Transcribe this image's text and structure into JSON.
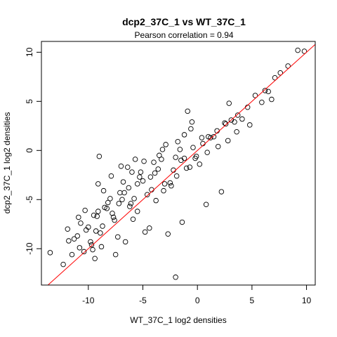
{
  "chart_data": {
    "type": "scatter",
    "title": "dcp2_37C_1 vs WT_37C_1",
    "subtitle": "Pearson correlation =  0.94",
    "xlabel": "WT_37C_1 log2 densities",
    "ylabel": "dcp2_37C_1 log2 densities",
    "xlim": [
      -14.3,
      10.8
    ],
    "ylim": [
      -13.7,
      11.1
    ],
    "x_ticks": [
      -10,
      -5,
      0,
      5,
      10
    ],
    "y_ticks": [
      -10,
      -5,
      0,
      5,
      10
    ],
    "grid": false,
    "legend": "none",
    "marker": "open-circle",
    "colors": {
      "points": "#000000",
      "reference_line": "#ff0000"
    },
    "reference_line": {
      "intercept": 0,
      "slope": 1
    },
    "points": {
      "x": [
        -13.5,
        -12.3,
        -11.8,
        -11.5,
        -11.0,
        -10.8,
        -10.4,
        -10.9,
        -9.8,
        -10.2,
        -9.5,
        -8.9,
        -9.2,
        -8.3,
        -7.8,
        -8.7,
        -8.2,
        -9.6,
        -9.4,
        -8.8,
        -7.3,
        -9.1,
        -9.0,
        -8.5,
        -11.3,
        -10.7,
        -10.3,
        -9.7,
        -7.9,
        -6.4,
        -7.1,
        -6.8,
        -5.2,
        -5.7,
        -4.9,
        -6.1,
        -6.3,
        -5.5,
        -4.4,
        -3.8,
        -3.1,
        -2.4,
        -1.9,
        -3.5,
        -2.9,
        -1.8,
        -1.2,
        -0.6,
        -1.5,
        -0.2,
        0.5,
        1.2,
        1.8,
        2.5,
        3.1,
        3.7,
        4.6,
        5.3,
        6.2,
        7.1,
        7.6,
        8.3,
        9.2,
        9.8,
        -4.8,
        -5.9,
        -7.5,
        -6.6,
        -2.7,
        -1.4,
        0.8,
        2.2,
        1.5,
        -3.2,
        3.6,
        4.8,
        2.9,
        -0.9,
        -7.0,
        -6.0,
        -4.0,
        -2.0,
        -0.4,
        1.0,
        -5.0,
        -3.0,
        -6.9,
        -4.6,
        -2.2,
        0.2,
        -8.0,
        -5.5,
        -3.6,
        -1.0,
        0.9,
        2.8,
        -7.6,
        -6.2,
        -4.2,
        -2.5,
        -0.7,
        1.9,
        -2.0,
        -3.9,
        -5.8,
        -7.2,
        -9.3,
        -10.0,
        -11.9,
        -8.6,
        -6.7,
        -3.3,
        -1.6,
        0.4,
        2.6,
        4.1,
        5.9,
        6.8,
        -0.5,
        -9.1,
        -5.3,
        -1.2,
        -7.7,
        -4.3,
        -0.1,
        3.4,
        6.5
      ],
      "y": [
        -10.4,
        -11.6,
        -9.2,
        -10.6,
        -8.7,
        -9.9,
        -10.3,
        -6.8,
        -9.3,
        -8.1,
        -6.6,
        -8.4,
        -6.7,
        -5.9,
        -6.4,
        -7.7,
        -5.3,
        -10.1,
        -11.0,
        -9.8,
        -8.8,
        -3.4,
        -0.6,
        -5.8,
        -9.0,
        -7.4,
        -6.1,
        -9.6,
        -2.6,
        -1.7,
        -4.3,
        -3.2,
        -2.2,
        -0.9,
        -1.1,
        -5.4,
        -3.8,
        -6.2,
        -7.9,
        -5.1,
        -4.1,
        -3.6,
        -2.6,
        -0.5,
        0.6,
        0.9,
        1.6,
        2.2,
        -1.0,
        -0.8,
        0.7,
        1.3,
        2.0,
        2.8,
        3.1,
        3.6,
        4.4,
        5.6,
        6.1,
        7.4,
        7.9,
        8.6,
        10.2,
        10.1,
        -8.3,
        -7.0,
        -10.6,
        -9.3,
        -8.5,
        -7.3,
        -5.5,
        -4.2,
        1.4,
        0.1,
        1.9,
        2.6,
        4.8,
        4.0,
        -1.6,
        -2.2,
        -1.2,
        -0.7,
        0.3,
        1.4,
        -3.1,
        -3.4,
        -5.0,
        -4.5,
        -2.0,
        -1.4,
        -4.9,
        -3.4,
        -1.9,
        -1.8,
        -0.2,
        1.0,
        -7.1,
        -5.7,
        -4.0,
        -3.3,
        -1.7,
        0.4,
        -12.9,
        -2.3,
        -4.9,
        -5.4,
        -8.2,
        -7.8,
        -8.0,
        -4.1,
        -4.3,
        -0.9,
        0.1,
        1.3,
        2.7,
        3.2,
        4.9,
        5.2,
        2.9,
        -6.2,
        -2.7,
        -0.8,
        -6.8,
        -2.7,
        -0.6,
        2.9,
        6.0
      ]
    }
  }
}
